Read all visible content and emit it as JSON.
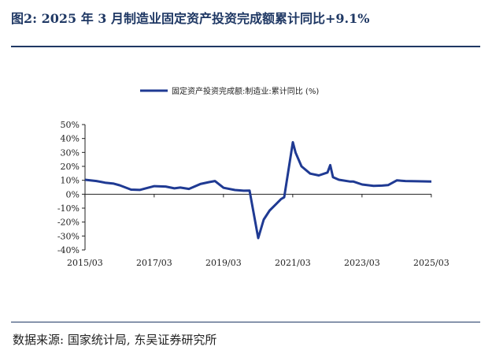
{
  "title": "图2:  2025 年 3 月制造业固定资产投资完成额累计同比+9.1%",
  "source": "数据来源: 国家统计局, 东吴证券研究所",
  "colors": {
    "line": "#1f3a93",
    "brand": "#1f3864",
    "axis": "#222222"
  },
  "chart_data": {
    "type": "line",
    "title": "",
    "xlabel": "",
    "ylabel": "",
    "legend": "top-center",
    "grid": false,
    "ylim": [
      -40,
      50
    ],
    "yticks": [
      "50%",
      "40%",
      "30%",
      "20%",
      "10%",
      "0%",
      "-10%",
      "-20%",
      "-30%",
      "-40%"
    ],
    "xticks": [
      "2015/03",
      "2017/03",
      "2019/03",
      "2021/03",
      "2023/03",
      "2025/03"
    ],
    "series": [
      {
        "name": "固定资产投资完成额:制造业:累计同比 (%)",
        "x": [
          2015.17,
          2015.5,
          2015.75,
          2016.0,
          2016.17,
          2016.5,
          2016.75,
          2016.92,
          2017.17,
          2017.5,
          2017.75,
          2017.92,
          2018.17,
          2018.5,
          2018.75,
          2018.92,
          2019.17,
          2019.5,
          2019.75,
          2019.92,
          2020.17,
          2020.33,
          2020.5,
          2020.67,
          2020.83,
          2020.92,
          2021.17,
          2021.25,
          2021.42,
          2021.67,
          2021.92,
          2022.17,
          2022.25,
          2022.33,
          2022.5,
          2022.83,
          2022.92,
          2023.17,
          2023.5,
          2023.75,
          2023.92,
          2024.17,
          2024.42,
          2024.75,
          2025.17
        ],
        "y": [
          10.4,
          9.5,
          8.3,
          7.6,
          6.4,
          3.3,
          3.1,
          4.2,
          5.8,
          5.5,
          4.2,
          4.8,
          3.8,
          7.3,
          8.7,
          9.5,
          4.6,
          3.0,
          2.5,
          2.6,
          -31.5,
          -18.2,
          -11.7,
          -7.5,
          -3.5,
          -2.2,
          37.3,
          29.8,
          20.0,
          14.8,
          13.5,
          15.6,
          20.9,
          12.2,
          10.4,
          9.1,
          9.1,
          7.0,
          6.0,
          6.2,
          6.5,
          9.9,
          9.5,
          9.3,
          9.1
        ]
      }
    ]
  }
}
